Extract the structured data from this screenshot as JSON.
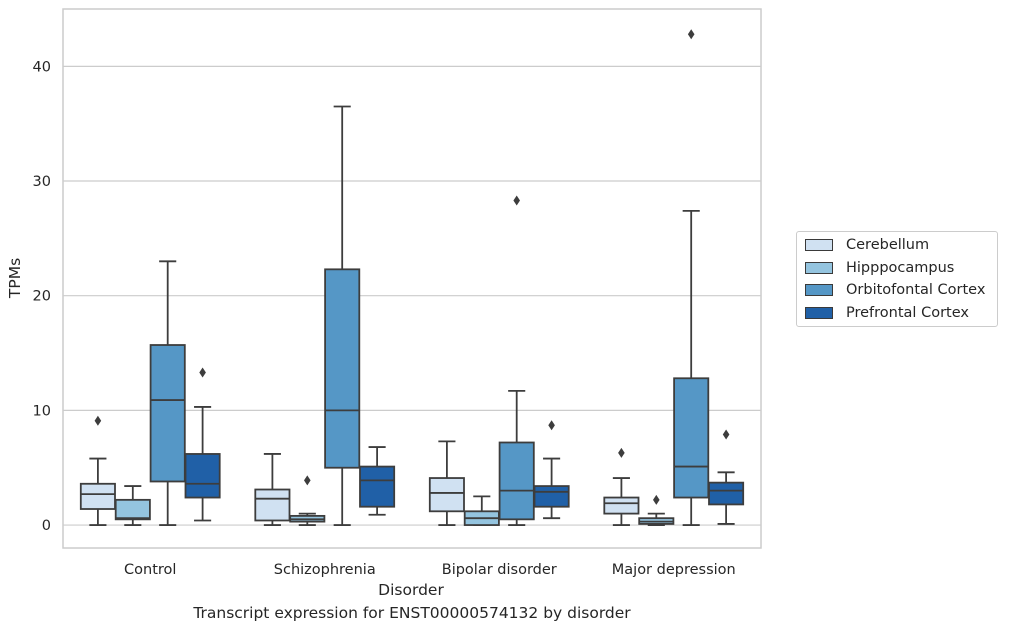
{
  "chart_data": {
    "type": "box",
    "title": "",
    "xlabel": "Disorder",
    "ylabel": "TPMs",
    "caption": "Transcript expression for ENST00000574132 by disorder",
    "categories": [
      "Control",
      "Schizophrenia",
      "Bipolar disorder",
      "Major depression"
    ],
    "ylim": [
      -2,
      45
    ],
    "yticks": [
      0,
      10,
      20,
      30,
      40
    ],
    "grid": "horizontal",
    "legend_position": "right",
    "series": [
      {
        "name": "Cerebellum",
        "color": "#d0e1f2",
        "boxes": [
          {
            "whislo": 0,
            "q1": 1.4,
            "med": 2.7,
            "q3": 3.6,
            "whishi": 5.8,
            "fliers": [
              9.1
            ]
          },
          {
            "whislo": 0,
            "q1": 0.4,
            "med": 2.3,
            "q3": 3.1,
            "whishi": 6.2,
            "fliers": []
          },
          {
            "whislo": 0,
            "q1": 1.2,
            "med": 2.8,
            "q3": 4.1,
            "whishi": 7.3,
            "fliers": []
          },
          {
            "whislo": 0,
            "q1": 1.0,
            "med": 1.9,
            "q3": 2.4,
            "whishi": 4.1,
            "fliers": [
              6.3
            ]
          }
        ]
      },
      {
        "name": "Hipppocampus",
        "color": "#94c4df",
        "boxes": [
          {
            "whislo": 0,
            "q1": 0.5,
            "med": 0.6,
            "q3": 2.2,
            "whishi": 3.4,
            "fliers": []
          },
          {
            "whislo": 0,
            "q1": 0.3,
            "med": 0.5,
            "q3": 0.8,
            "whishi": 1.0,
            "fliers": [
              3.9
            ]
          },
          {
            "whislo": 0,
            "q1": 0.0,
            "med": 0.6,
            "q3": 1.2,
            "whishi": 2.5,
            "fliers": []
          },
          {
            "whislo": 0,
            "q1": 0.1,
            "med": 0.3,
            "q3": 0.6,
            "whishi": 1.0,
            "fliers": [
              2.2
            ]
          }
        ]
      },
      {
        "name": "Orbitofontal Cortex",
        "color": "#5597c6",
        "boxes": [
          {
            "whislo": 0,
            "q1": 3.8,
            "med": 10.9,
            "q3": 15.7,
            "whishi": 23.0,
            "fliers": []
          },
          {
            "whislo": 0,
            "q1": 5.0,
            "med": 10.0,
            "q3": 22.3,
            "whishi": 36.5,
            "fliers": []
          },
          {
            "whislo": 0,
            "q1": 0.5,
            "med": 3.0,
            "q3": 7.2,
            "whishi": 11.7,
            "fliers": [
              28.3
            ]
          },
          {
            "whislo": 0,
            "q1": 2.4,
            "med": 5.1,
            "q3": 12.8,
            "whishi": 27.4,
            "fliers": [
              42.8
            ]
          }
        ]
      },
      {
        "name": "Prefrontal Cortex",
        "color": "#2060a7",
        "boxes": [
          {
            "whislo": 0.4,
            "q1": 2.4,
            "med": 3.6,
            "q3": 6.2,
            "whishi": 10.3,
            "fliers": [
              13.3
            ]
          },
          {
            "whislo": 0.9,
            "q1": 1.6,
            "med": 3.9,
            "q3": 5.1,
            "whishi": 6.8,
            "fliers": []
          },
          {
            "whislo": 0.6,
            "q1": 1.6,
            "med": 2.9,
            "q3": 3.4,
            "whishi": 5.8,
            "fliers": [
              8.7
            ]
          },
          {
            "whislo": 0.1,
            "q1": 1.8,
            "med": 3.0,
            "q3": 3.7,
            "whishi": 4.6,
            "fliers": [
              7.9
            ]
          }
        ]
      }
    ]
  }
}
